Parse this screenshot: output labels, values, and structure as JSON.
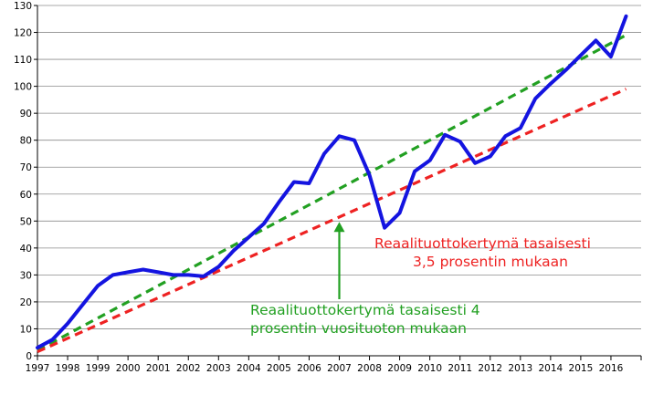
{
  "chart_data": {
    "type": "line",
    "title": "",
    "xlabel": "",
    "ylabel": "",
    "ylim": [
      0,
      130
    ],
    "yticks": [
      0,
      10,
      20,
      30,
      40,
      50,
      60,
      70,
      80,
      90,
      100,
      110,
      120,
      130
    ],
    "xlim": [
      1997,
      2017
    ],
    "xticks": [
      "1997",
      "1998",
      "1999",
      "2000",
      "2001",
      "2002",
      "2003",
      "2004",
      "2005",
      "2006",
      "2007",
      "2008",
      "2009",
      "2010",
      "2011",
      "2012",
      "2013",
      "2014",
      "2015",
      "2016"
    ],
    "grid": "horizontal",
    "series": [
      {
        "color": "#1414e0",
        "style": "solid",
        "x": [
          1997.0,
          1997.5,
          1998.0,
          1998.5,
          1999.0,
          1999.5,
          2000.0,
          2000.5,
          2001.0,
          2001.5,
          2002.0,
          2002.5,
          2003.0,
          2003.5,
          2004.0,
          2004.5,
          2005.0,
          2005.5,
          2006.0,
          2006.5,
          2007.0,
          2007.5,
          2008.0,
          2008.5,
          2009.0,
          2009.5,
          2010.0,
          2010.5,
          2011.0,
          2011.5,
          2012.0,
          2012.5,
          2013.0,
          2013.5,
          2014.0,
          2014.5,
          2015.0,
          2015.5,
          2016.0,
          2016.5
        ],
        "values": [
          3,
          6,
          12,
          19,
          26,
          30,
          31,
          32,
          31,
          30,
          30,
          29.5,
          33,
          39,
          44,
          49,
          57,
          64.5,
          64,
          75,
          81.5,
          80,
          67,
          47.5,
          53,
          68.5,
          72.5,
          82,
          79.5,
          71.5,
          74,
          81.5,
          84.5,
          95.5,
          101,
          106,
          111.5,
          117,
          111,
          126
        ]
      },
      {
        "name": "Reaalituottokertymä tasaisesti 4 prosentin vuosituoton mukaan",
        "color": "#22a022",
        "style": "dashed",
        "x": [
          1997.0,
          2016.5
        ],
        "values": [
          2,
          119
        ]
      },
      {
        "name": "Reaalituottokertymä tasaisesti 3,5 prosentin mukaan",
        "color": "#ee2222",
        "style": "dashed",
        "x": [
          1997.0,
          2016.5
        ],
        "values": [
          1.5,
          99
        ]
      }
    ],
    "annotations": [
      {
        "lines": [
          "Reaalituottokertymä tasaisesti 4",
          "prosentin vuosituoton mukaan"
        ],
        "color": "#22a022",
        "arrow_to": [
          2007.0,
          50
        ]
      },
      {
        "lines": [
          "Reaalituottokertymä tasaisesti",
          "3,5 prosentin mukaan"
        ],
        "color": "#ee2222"
      }
    ]
  }
}
